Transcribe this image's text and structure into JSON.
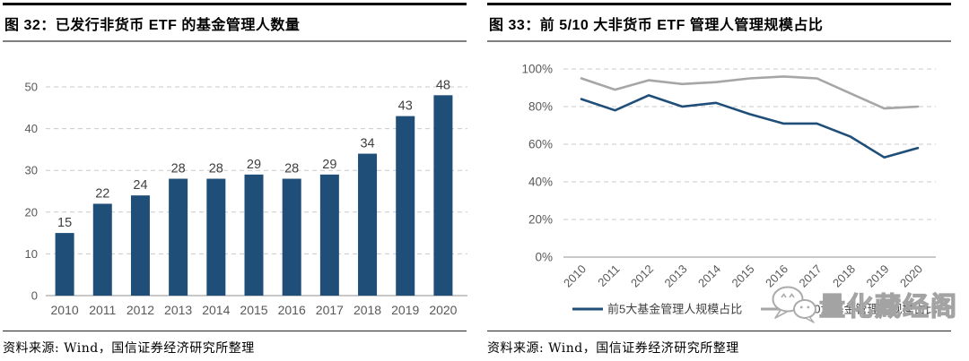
{
  "panels": [
    {
      "source": "资料来源: Wind，国信证券经济研究所整理"
    },
    {
      "source": "资料来源: Wind，国信证券经济研究所整理"
    }
  ],
  "watermark": {
    "text": "量化藏经阁",
    "icon": "wechat-icon"
  },
  "colors": {
    "bar_blue": "#1F4E79",
    "line_blue": "#1F4E79",
    "line_gray": "#A6A6A6",
    "gridline": "#C9C9C9",
    "axis": "#A6A6A6",
    "tick_label": "#595959",
    "data_label": "#404040"
  },
  "chart_data": [
    {
      "type": "bar",
      "title": "图 32：已发行非货币 ETF 的基金管理人数量",
      "categories": [
        "2010",
        "2011",
        "2012",
        "2013",
        "2014",
        "2015",
        "2016",
        "2017",
        "2018",
        "2019",
        "2020"
      ],
      "values": [
        15,
        22,
        24,
        28,
        28,
        29,
        28,
        29,
        34,
        43,
        48
      ],
      "xlabel": "",
      "ylabel": "",
      "ylim": [
        0,
        50
      ],
      "yticks": [
        0,
        10,
        20,
        30,
        40,
        50
      ],
      "grid": "horizontal-dashed",
      "data_labels": true,
      "bar_color": "#1F4E79",
      "legend": "none"
    },
    {
      "type": "line",
      "title": "图 33：前 5/10 大非货币 ETF 管理人管理规模占比",
      "categories": [
        "2010",
        "2011",
        "2012",
        "2013",
        "2014",
        "2015",
        "2016",
        "2017",
        "2018",
        "2019",
        "2020"
      ],
      "series": [
        {
          "name": "前5大基金管理人规模占比",
          "color": "#1F4E79",
          "values": [
            84,
            78,
            86,
            80,
            82,
            76,
            71,
            71,
            64,
            53,
            58
          ]
        },
        {
          "name": "前10大基金管理人规模占比",
          "color": "#A6A6A6",
          "values": [
            95,
            89,
            94,
            92,
            93,
            95,
            96,
            95,
            87,
            79,
            80
          ]
        }
      ],
      "xlabel": "",
      "ylabel": "",
      "ylim": [
        0,
        100
      ],
      "ytick_labels": [
        "0%",
        "20%",
        "40%",
        "60%",
        "80%",
        "100%"
      ],
      "grid": "horizontal-dashed",
      "legend_position": "bottom"
    }
  ]
}
